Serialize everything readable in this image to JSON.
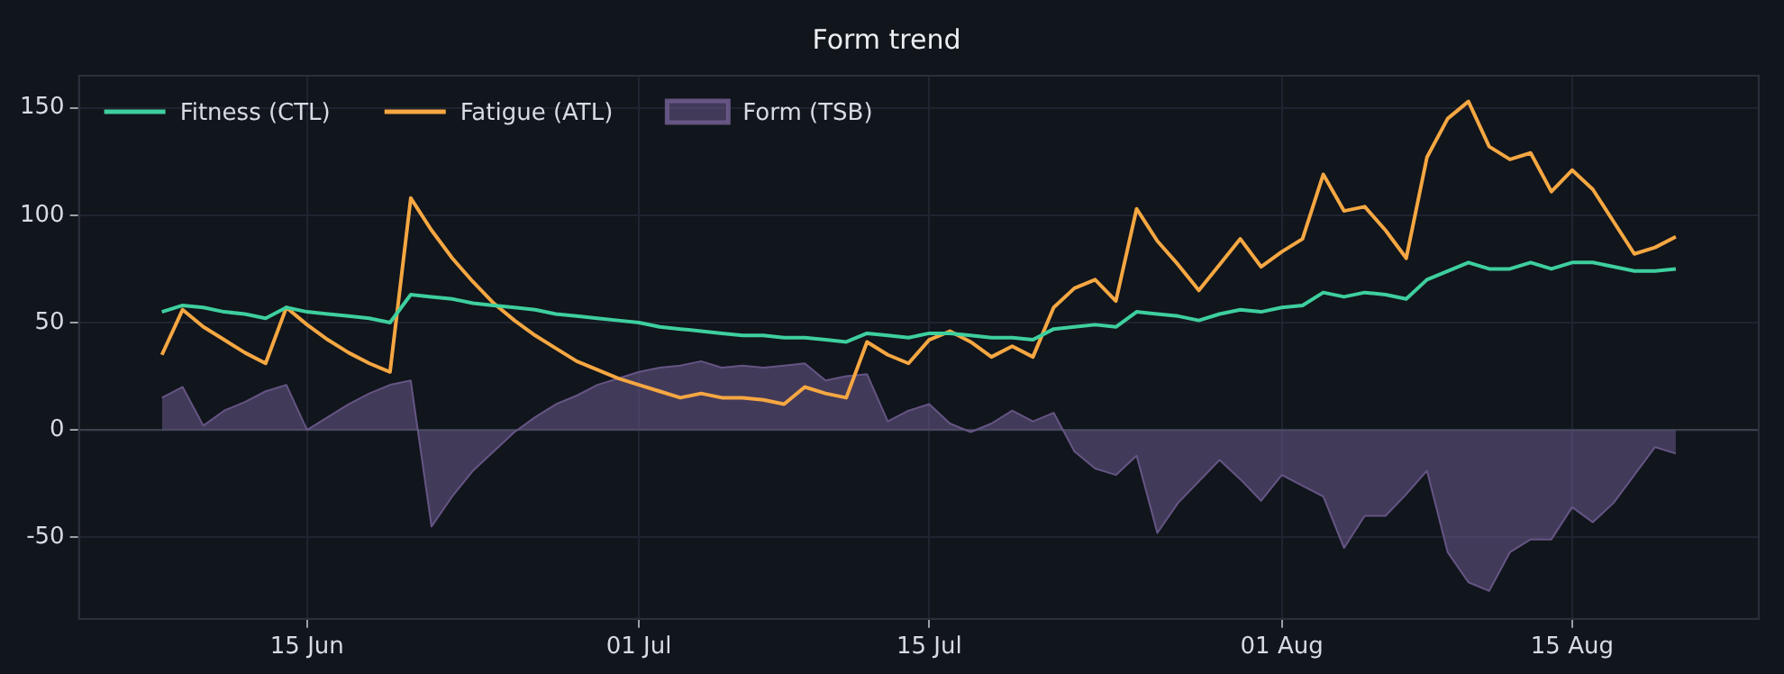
{
  "chart_data": {
    "type": "line",
    "title": "Form trend",
    "x": [
      "--06-08",
      "--06-09",
      "--06-10",
      "--06-11",
      "--06-12",
      "--06-13",
      "--06-14",
      "--06-15",
      "--06-16",
      "--06-17",
      "--06-18",
      "--06-19",
      "--06-20",
      "--06-21",
      "--06-22",
      "--06-23",
      "--06-24",
      "--06-25",
      "--06-26",
      "--06-27",
      "--06-28",
      "--06-29",
      "--06-30",
      "--07-01",
      "--07-02",
      "--07-03",
      "--07-04",
      "--07-05",
      "--07-06",
      "--07-07",
      "--07-08",
      "--07-09",
      "--07-10",
      "--07-11",
      "--07-12",
      "--07-13",
      "--07-14",
      "--07-15",
      "--07-16",
      "--07-17",
      "--07-18",
      "--07-19",
      "--07-20",
      "--07-21",
      "--07-22",
      "--07-23",
      "--07-24",
      "--07-25",
      "--07-26",
      "--07-27",
      "--07-28",
      "--07-29",
      "--07-30",
      "--07-31",
      "--08-01",
      "--08-02",
      "--08-03",
      "--08-04",
      "--08-05",
      "--08-06",
      "--08-07",
      "--08-08",
      "--08-09",
      "--08-10",
      "--08-11",
      "--08-12",
      "--08-13",
      "--08-14",
      "--08-15",
      "--08-16",
      "--08-17",
      "--08-18",
      "--08-19",
      "--08-20"
    ],
    "series": [
      {
        "name": "Form (TSB)",
        "type": "area",
        "color": "#6b5a8c",
        "values": [
          15,
          20,
          2,
          9,
          13,
          18,
          21,
          0,
          6,
          12,
          17,
          21,
          23,
          -45,
          -31,
          -19,
          -10,
          -1,
          6,
          12,
          16,
          21,
          24,
          27,
          29,
          30,
          32,
          29,
          30,
          29,
          30,
          31,
          23,
          25,
          26,
          4,
          9,
          12,
          3,
          -1,
          3,
          9,
          4,
          8,
          -10,
          -18,
          -21,
          -12,
          -48,
          -34,
          -24,
          -14,
          -23,
          -33,
          -21,
          -26,
          -31,
          -55,
          -40,
          -40,
          -30,
          -19,
          -57,
          -71,
          -75,
          -57,
          -51,
          -51,
          -36,
          -43,
          -34,
          -21,
          -8,
          -11
        ]
      },
      {
        "name": "Fitness (CTL)",
        "color": "#3ecf9e",
        "values": [
          55,
          58,
          57,
          55,
          54,
          52,
          57,
          55,
          54,
          53,
          52,
          50,
          63,
          62,
          61,
          59,
          58,
          57,
          56,
          54,
          53,
          52,
          51,
          50,
          48,
          47,
          46,
          45,
          44,
          44,
          43,
          43,
          42,
          41,
          45,
          44,
          43,
          45,
          45,
          44,
          43,
          43,
          42,
          47,
          48,
          49,
          48,
          55,
          54,
          53,
          51,
          54,
          56,
          55,
          57,
          58,
          64,
          62,
          64,
          63,
          61,
          70,
          74,
          78,
          75,
          75,
          78,
          75,
          78,
          78,
          76,
          74,
          74,
          75
        ]
      },
      {
        "name": "Fatigue (ATL)",
        "color": "#f5a742",
        "values": [
          35,
          56,
          48,
          42,
          36,
          31,
          57,
          49,
          42,
          36,
          31,
          27,
          108,
          93,
          80,
          69,
          59,
          51,
          44,
          38,
          32,
          28,
          24,
          21,
          18,
          15,
          17,
          15,
          15,
          14,
          12,
          20,
          17,
          15,
          41,
          35,
          31,
          42,
          46,
          41,
          34,
          39,
          34,
          57,
          66,
          70,
          60,
          103,
          88,
          77,
          65,
          77,
          89,
          76,
          83,
          89,
          119,
          102,
          104,
          93,
          80,
          127,
          145,
          153,
          132,
          126,
          129,
          111,
          121,
          112,
          97,
          82,
          85,
          90
        ]
      }
    ],
    "xlim": [
      "--06-04",
      "--08-24"
    ],
    "xticks": [
      {
        "value": "--06-15",
        "label": "15 Jun"
      },
      {
        "value": "--07-01",
        "label": "01 Jul"
      },
      {
        "value": "--07-15",
        "label": "15 Jul"
      },
      {
        "value": "--08-01",
        "label": "01 Aug"
      },
      {
        "value": "--08-15",
        "label": "15 Aug"
      }
    ],
    "ylim": [
      -88,
      165
    ],
    "yticks": [
      -50,
      0,
      50,
      100,
      150
    ],
    "ref_lines": [
      {
        "axis": "y",
        "value": 0,
        "color": "#3a404c"
      }
    ],
    "grid": true,
    "legend": "top left"
  }
}
